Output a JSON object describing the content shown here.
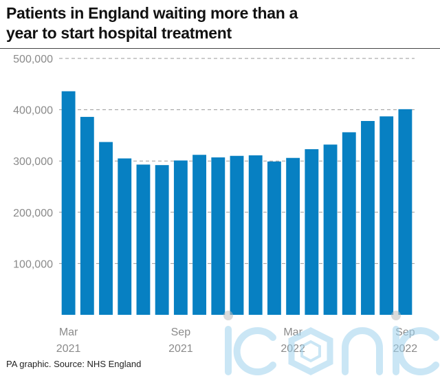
{
  "title_line1": "Patients in England waiting more than a",
  "title_line2": "year to start hospital treatment",
  "source": "PA graphic. Source: NHS England",
  "watermark": "iconic",
  "colors": {
    "bar": "#0780c2",
    "grid": "#9a9a9a",
    "axis": "#8a8a8a",
    "watermark": "#9fd3ee"
  },
  "chart_data": {
    "type": "bar",
    "title": "Patients in England waiting more than a year to start hospital treatment",
    "xlabel": "",
    "ylabel": "",
    "categories": [
      "Mar 2021",
      "Apr 2021",
      "May 2021",
      "Jun 2021",
      "Jul 2021",
      "Aug 2021",
      "Sep 2021",
      "Oct 2021",
      "Nov 2021",
      "Dec 2021",
      "Jan 2022",
      "Feb 2022",
      "Mar 2022",
      "Apr 2022",
      "May 2022",
      "Jun 2022",
      "Jul 2022",
      "Aug 2022",
      "Sep 2022"
    ],
    "values": [
      436000,
      386000,
      337000,
      305000,
      293000,
      292000,
      301000,
      312000,
      307000,
      310000,
      311000,
      299000,
      306000,
      323000,
      332000,
      356000,
      378000,
      387000,
      401000
    ],
    "ylim": [
      0,
      500000
    ],
    "yticks": [
      {
        "value": 100000,
        "label": "100,000"
      },
      {
        "value": 200000,
        "label": "200,000"
      },
      {
        "value": 300000,
        "label": "300,000"
      },
      {
        "value": 400000,
        "label": "400,000"
      },
      {
        "value": 500000,
        "label": "500,000"
      }
    ],
    "xticks": [
      {
        "index": 0,
        "month": "Mar",
        "year": "2021"
      },
      {
        "index": 6,
        "month": "Sep",
        "year": "2021"
      },
      {
        "index": 12,
        "month": "Mar",
        "year": "2022"
      },
      {
        "index": 18,
        "month": "Sep",
        "year": "2022"
      }
    ],
    "grid": true,
    "legend": "none"
  }
}
